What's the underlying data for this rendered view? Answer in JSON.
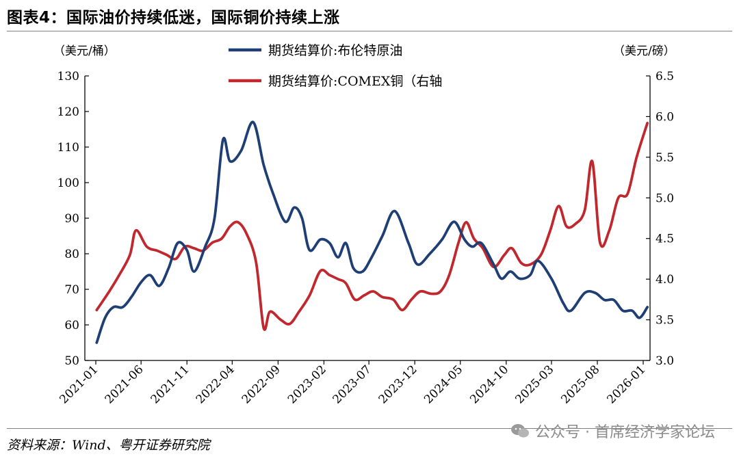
{
  "title": "图表4：国际油价持续低迷，国际铜价持续上涨",
  "source": "资料来源：Wind、粤开证券研究院",
  "watermark": "公众号 · 首席经济学家论坛",
  "chart_data": {
    "type": "line",
    "left_unit": "（美元/桶）",
    "right_unit": "（美元/磅）",
    "left_ylim": [
      50,
      130
    ],
    "right_ylim": [
      3.0,
      6.5
    ],
    "left_ticks": [
      50,
      60,
      70,
      80,
      90,
      100,
      110,
      120,
      130
    ],
    "right_ticks": [
      "3.0",
      "3.5",
      "4.0",
      "4.5",
      "5.0",
      "5.5",
      "6.0",
      "6.5"
    ],
    "x_ticks": [
      "2021-01",
      "2021-06",
      "2021-11",
      "2022-04",
      "2022-09",
      "2023-02",
      "2023-07",
      "2023-12",
      "2024-05",
      "2024-10",
      "2025-03",
      "2025-08",
      "2026-01"
    ],
    "x_range": [
      "2021-01",
      "2026-01"
    ],
    "series": [
      {
        "name": "期货结算价:布伦特原油",
        "axis": "left",
        "color": "#1f3f74",
        "points": [
          [
            "2021-01-04",
            55
          ],
          [
            "2021-02-01",
            62
          ],
          [
            "2021-03-01",
            65
          ],
          [
            "2021-04-01",
            65
          ],
          [
            "2021-05-01",
            68
          ],
          [
            "2021-06-01",
            72
          ],
          [
            "2021-07-01",
            74
          ],
          [
            "2021-08-01",
            71
          ],
          [
            "2021-09-01",
            76
          ],
          [
            "2021-10-01",
            83
          ],
          [
            "2021-11-01",
            81
          ],
          [
            "2021-11-25",
            75
          ],
          [
            "2022-01-01",
            82
          ],
          [
            "2022-02-01",
            90
          ],
          [
            "2022-03-01",
            112
          ],
          [
            "2022-03-25",
            106
          ],
          [
            "2022-05-01",
            109
          ],
          [
            "2022-06-10",
            117
          ],
          [
            "2022-07-15",
            105
          ],
          [
            "2022-08-15",
            97
          ],
          [
            "2022-09-25",
            89
          ],
          [
            "2022-10-25",
            93
          ],
          [
            "2022-11-20",
            90
          ],
          [
            "2022-12-15",
            81
          ],
          [
            "2023-01-20",
            84
          ],
          [
            "2023-02-20",
            83
          ],
          [
            "2023-03-20",
            79
          ],
          [
            "2023-04-15",
            83
          ],
          [
            "2023-05-10",
            76
          ],
          [
            "2023-06-10",
            75
          ],
          [
            "2023-07-10",
            79
          ],
          [
            "2023-08-15",
            85
          ],
          [
            "2023-09-25",
            92
          ],
          [
            "2023-11-10",
            83
          ],
          [
            "2023-12-10",
            77
          ],
          [
            "2024-01-20",
            80
          ],
          [
            "2024-03-01",
            84
          ],
          [
            "2024-04-10",
            89
          ],
          [
            "2024-05-15",
            84
          ],
          [
            "2024-06-10",
            82
          ],
          [
            "2024-07-10",
            83
          ],
          [
            "2024-08-20",
            77
          ],
          [
            "2024-09-15",
            73
          ],
          [
            "2024-10-15",
            75
          ],
          [
            "2024-11-15",
            73
          ],
          [
            "2024-12-20",
            74
          ],
          [
            "2025-01-15",
            78
          ],
          [
            "2025-03-01",
            73
          ],
          [
            "2025-04-10",
            66
          ],
          [
            "2025-05-05",
            64
          ],
          [
            "2025-06-20",
            69
          ],
          [
            "2025-07-25",
            69
          ],
          [
            "2025-08-25",
            67
          ],
          [
            "2025-09-25",
            67
          ],
          [
            "2025-10-25",
            64
          ],
          [
            "2025-11-25",
            64
          ],
          [
            "2025-12-20",
            62
          ],
          [
            "2026-01-15",
            65
          ]
        ]
      },
      {
        "name": "期货结算价:COMEX铜（右轴",
        "axis": "right",
        "color": "#c0282d",
        "points": [
          [
            "2021-01-04",
            3.62
          ],
          [
            "2021-02-15",
            3.85
          ],
          [
            "2021-03-20",
            4.05
          ],
          [
            "2021-04-25",
            4.3
          ],
          [
            "2021-05-15",
            4.6
          ],
          [
            "2021-06-20",
            4.4
          ],
          [
            "2021-07-25",
            4.35
          ],
          [
            "2021-08-25",
            4.3
          ],
          [
            "2021-09-25",
            4.25
          ],
          [
            "2021-10-25",
            4.4
          ],
          [
            "2021-11-25",
            4.38
          ],
          [
            "2021-12-25",
            4.35
          ],
          [
            "2022-01-25",
            4.45
          ],
          [
            "2022-02-25",
            4.5
          ],
          [
            "2022-03-25",
            4.65
          ],
          [
            "2022-04-20",
            4.7
          ],
          [
            "2022-05-20",
            4.55
          ],
          [
            "2022-06-20",
            4.2
          ],
          [
            "2022-07-15",
            3.4
          ],
          [
            "2022-08-05",
            3.6
          ],
          [
            "2022-09-10",
            3.5
          ],
          [
            "2022-10-10",
            3.45
          ],
          [
            "2022-11-10",
            3.6
          ],
          [
            "2022-12-15",
            3.8
          ],
          [
            "2023-01-20",
            4.1
          ],
          [
            "2023-02-20",
            4.05
          ],
          [
            "2023-03-20",
            4.0
          ],
          [
            "2023-04-15",
            3.95
          ],
          [
            "2023-05-15",
            3.75
          ],
          [
            "2023-06-15",
            3.8
          ],
          [
            "2023-07-15",
            3.85
          ],
          [
            "2023-08-15",
            3.78
          ],
          [
            "2023-09-20",
            3.75
          ],
          [
            "2023-10-20",
            3.62
          ],
          [
            "2023-11-20",
            3.75
          ],
          [
            "2023-12-20",
            3.85
          ],
          [
            "2024-01-25",
            3.82
          ],
          [
            "2024-02-25",
            3.85
          ],
          [
            "2024-03-25",
            4.05
          ],
          [
            "2024-04-25",
            4.45
          ],
          [
            "2024-05-20",
            4.7
          ],
          [
            "2024-06-15",
            4.5
          ],
          [
            "2024-07-15",
            4.38
          ],
          [
            "2024-08-20",
            4.15
          ],
          [
            "2024-09-25",
            4.3
          ],
          [
            "2024-10-20",
            4.38
          ],
          [
            "2024-11-20",
            4.2
          ],
          [
            "2024-12-20",
            4.18
          ],
          [
            "2025-01-25",
            4.3
          ],
          [
            "2025-02-25",
            4.6
          ],
          [
            "2025-03-25",
            4.9
          ],
          [
            "2025-04-20",
            4.65
          ],
          [
            "2025-05-20",
            4.68
          ],
          [
            "2025-06-20",
            4.85
          ],
          [
            "2025-07-15",
            5.45
          ],
          [
            "2025-08-10",
            4.45
          ],
          [
            "2025-09-10",
            4.6
          ],
          [
            "2025-10-10",
            5.0
          ],
          [
            "2025-11-10",
            5.05
          ],
          [
            "2025-12-10",
            5.5
          ],
          [
            "2026-01-15",
            5.92
          ]
        ]
      }
    ]
  }
}
